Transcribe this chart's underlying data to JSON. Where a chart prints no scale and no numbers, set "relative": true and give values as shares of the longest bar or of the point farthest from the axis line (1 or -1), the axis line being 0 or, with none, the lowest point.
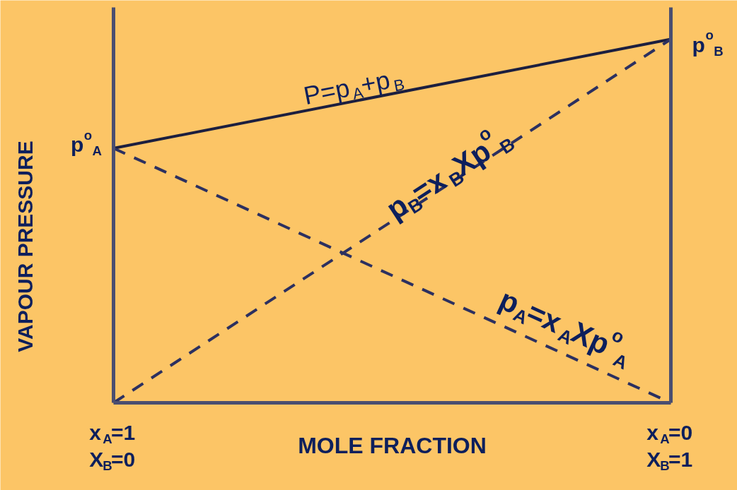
{
  "chart_data": {
    "type": "line",
    "relative": true,
    "xlabel": "MOLE FRACTION",
    "ylabel": "VAPOUR PRESSURE",
    "categories": [
      "x$_{A}$=1\nX$_{B}$=0",
      "x$_{A}$=0\nX$_{B}$=1"
    ],
    "tick_labels": "x",
    "series": [
      {
        "color": "#1c1f3f",
        "values": [
          0.7,
          1
        ],
        "line_style": "solid"
      },
      {
        "color": "#2c3060",
        "values": [
          0.7,
          0
        ],
        "line_style": "dashed"
      },
      {
        "color": "#2c3060",
        "values": [
          0,
          1
        ],
        "line_style": "dashed"
      }
    ],
    "annotations": [
      "p$^{o}$$_{A}$",
      "p$^{o}$$_{B}$",
      "P=p$_{A}$+p$_{B}$",
      "p$_{B}$=x$_{B}$Xp$^{o}$$_{B}$",
      "p$_{A}$=x$_{A}$Xp$^{o}$$_{A}$"
    ]
  }
}
